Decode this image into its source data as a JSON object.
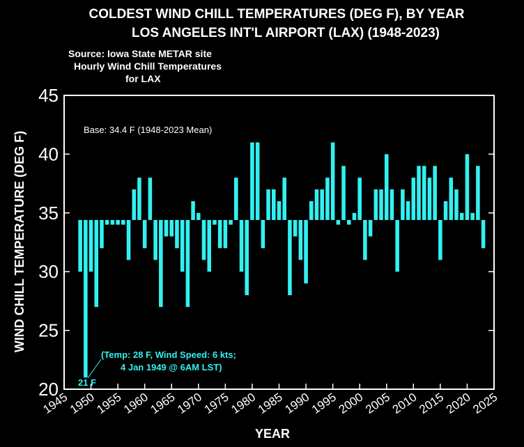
{
  "chart_data": {
    "type": "bar",
    "title": "COLDEST WIND CHILL TEMPERATURES (DEG F), BY YEAR",
    "subtitle": "LOS ANGELES INT'L AIRPORT (LAX)  (1948-2023)",
    "notes": [
      "Source: Iowa State METAR site",
      "Hourly Wind Chill Temperatures",
      "for LAX"
    ],
    "base_label": "Base: 34.4 F (1948-2023 Mean)",
    "baseline": 34.4,
    "xlabel": "YEAR",
    "ylabel": "WIND CHILL TEMPERATURE (DEG F)",
    "xlim": [
      1945,
      2025
    ],
    "ylim": [
      20,
      45
    ],
    "x_ticks": [
      1945,
      1950,
      1955,
      1960,
      1965,
      1970,
      1975,
      1980,
      1985,
      1990,
      1995,
      2000,
      2005,
      2010,
      2015,
      2020,
      2025
    ],
    "y_ticks": [
      20,
      25,
      30,
      35,
      40,
      45
    ],
    "bar_color": "#33f0f0",
    "annotations": {
      "min_label": "21 F",
      "detail_line1": "(Temp: 28 F, Wind Speed: 6 kts;",
      "detail_line2": "4 Jan 1949 @ 6AM LST)"
    },
    "series": [
      {
        "x": [
          1948,
          1949,
          1950,
          1951,
          1952,
          1953,
          1954,
          1955,
          1956,
          1957,
          1958,
          1959,
          1960,
          1961,
          1962,
          1963,
          1964,
          1965,
          1966,
          1967,
          1968,
          1969,
          1970,
          1971,
          1972,
          1973,
          1974,
          1975,
          1976,
          1977,
          1978,
          1979,
          1980,
          1981,
          1982,
          1983,
          1984,
          1985,
          1986,
          1987,
          1988,
          1989,
          1990,
          1991,
          1992,
          1993,
          1994,
          1995,
          1996,
          1997,
          1998,
          1999,
          2000,
          2001,
          2002,
          2003,
          2004,
          2005,
          2006,
          2007,
          2008,
          2009,
          2010,
          2011,
          2012,
          2013,
          2014,
          2015,
          2016,
          2017,
          2018,
          2019,
          2020,
          2021,
          2022,
          2023
        ],
        "values": [
          30,
          21,
          30,
          27,
          32,
          34,
          34,
          34,
          34,
          31,
          37,
          38,
          32,
          38,
          31,
          27,
          33,
          33,
          32,
          30,
          27,
          36,
          35,
          31,
          30,
          34,
          32,
          32,
          34,
          38,
          30,
          28,
          41,
          41,
          32,
          37,
          37,
          36,
          38,
          28,
          33,
          31,
          29,
          36,
          37,
          37,
          38,
          41,
          34,
          39,
          34,
          35,
          38,
          31,
          33,
          37,
          37,
          40,
          37,
          30,
          37,
          36,
          38,
          39,
          39,
          38,
          39,
          31,
          36,
          38,
          37,
          35,
          40,
          35,
          39,
          32
        ]
      }
    ]
  }
}
